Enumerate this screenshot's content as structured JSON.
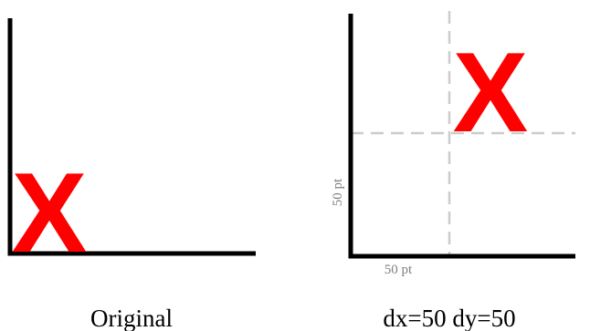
{
  "panels": {
    "original": {
      "caption": "Original",
      "mark": "X"
    },
    "translated": {
      "caption": "dx=50 dy=50",
      "mark": "X",
      "x_offset_label": "50 pt",
      "y_offset_label": "50 pt"
    }
  },
  "colors": {
    "mark": "#ff0000",
    "axis": "#000000",
    "guide": "#cccccc",
    "dimension_text": "#7f7f7f"
  }
}
